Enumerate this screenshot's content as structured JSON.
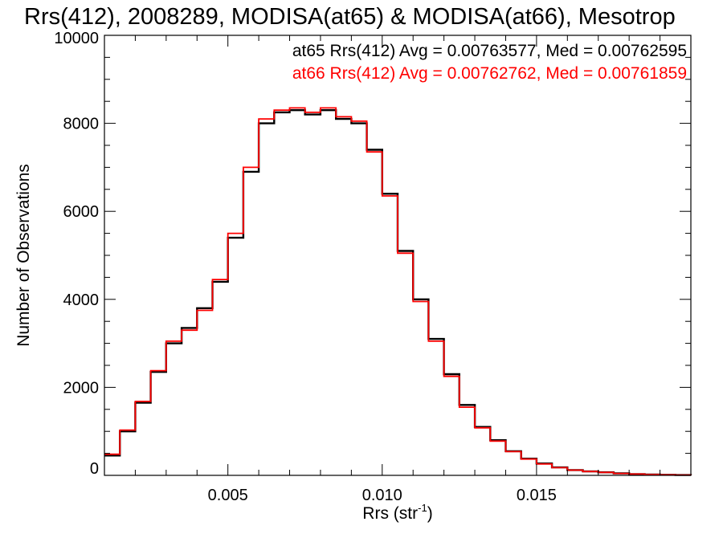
{
  "chart_data": {
    "type": "line",
    "title": "Rrs(412), 2008289, MODISA(at65) & MODISA(at66), Mesotrop",
    "xlabel": "Rrs (str",
    "xlabel_sup": "-1",
    "xlabel_suffix": ")",
    "ylabel": "Number of Observations",
    "xlim": [
      0.001,
      0.02
    ],
    "ylim": [
      0,
      10000
    ],
    "x_ticks": [
      0.005,
      0.01,
      0.015
    ],
    "x_tick_labels": [
      "0.005",
      "0.010",
      "0.015"
    ],
    "y_ticks": [
      0,
      2000,
      4000,
      6000,
      8000,
      10000
    ],
    "y_tick_labels": [
      "0",
      "2000",
      "4000",
      "6000",
      "8000",
      "10000"
    ],
    "grid": false,
    "legend_position": "top-right",
    "legend": [
      "at65 Rrs(412) Avg = 0.00763577, Med = 0.00762595",
      "at66 Rrs(412) Avg = 0.00762762, Med = 0.00761859"
    ],
    "series": [
      {
        "color": "#000000",
        "x": [
          0.001,
          0.0015,
          0.002,
          0.0025,
          0.003,
          0.0035,
          0.004,
          0.0045,
          0.005,
          0.0055,
          0.006,
          0.0065,
          0.007,
          0.0075,
          0.008,
          0.0085,
          0.009,
          0.0095,
          0.01,
          0.0105,
          0.011,
          0.0115,
          0.012,
          0.0125,
          0.013,
          0.0135,
          0.014,
          0.0145,
          0.015,
          0.0155,
          0.016,
          0.0165,
          0.017,
          0.0175,
          0.018,
          0.0185,
          0.019,
          0.0195,
          0.02
        ],
        "y": [
          450,
          1000,
          1650,
          2350,
          3000,
          3350,
          3800,
          4400,
          5400,
          6900,
          8000,
          8250,
          8300,
          8200,
          8300,
          8100,
          8000,
          7400,
          6400,
          5100,
          4000,
          3100,
          2300,
          1600,
          1100,
          800,
          550,
          380,
          270,
          180,
          120,
          90,
          70,
          45,
          30,
          20,
          12,
          8,
          5
        ]
      },
      {
        "color": "#ff0000",
        "x": [
          0.001,
          0.0015,
          0.002,
          0.0025,
          0.003,
          0.0035,
          0.004,
          0.0045,
          0.005,
          0.0055,
          0.006,
          0.0065,
          0.007,
          0.0075,
          0.008,
          0.0085,
          0.009,
          0.0095,
          0.01,
          0.0105,
          0.011,
          0.0115,
          0.012,
          0.0125,
          0.013,
          0.0135,
          0.014,
          0.0145,
          0.015,
          0.0155,
          0.016,
          0.0165,
          0.017,
          0.0175,
          0.018,
          0.0185,
          0.019,
          0.0195,
          0.02
        ],
        "y": [
          480,
          1030,
          1680,
          2380,
          3050,
          3300,
          3750,
          4450,
          5500,
          7000,
          8100,
          8300,
          8350,
          8250,
          8350,
          8150,
          8050,
          7350,
          6350,
          5050,
          3950,
          3050,
          2250,
          1550,
          1080,
          780,
          540,
          370,
          260,
          175,
          118,
          88,
          68,
          44,
          29,
          19,
          11,
          7,
          4
        ]
      }
    ]
  }
}
